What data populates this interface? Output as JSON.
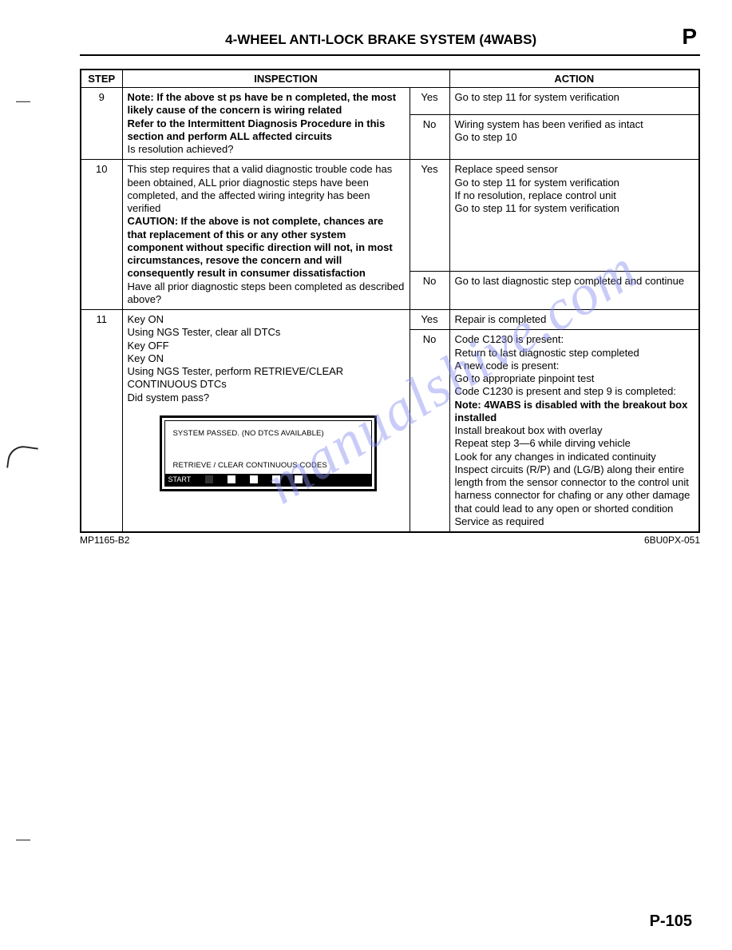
{
  "header": {
    "title": "4-WHEEL ANTI-LOCK BRAKE SYSTEM (4WABS)",
    "letter": "P"
  },
  "columns": {
    "step": "STEP",
    "inspection": "INSPECTION",
    "action": "ACTION"
  },
  "rows": [
    {
      "step": "9",
      "inspection_html": "<span class='b'>Note: If the above st ps have be n completed, the most likely cause of the concern is wiring related<br>Refer to the Intermittent Diagnosis Procedure in this section and perform ALL affected circuits</span><br>Is resolution achieved?",
      "branches": [
        {
          "yn": "Yes",
          "action_html": "Go to step 11 for system verification"
        },
        {
          "yn": "No",
          "action_html": "Wiring system has been verified as intact<br>Go to step 10"
        }
      ]
    },
    {
      "step": "10",
      "inspection_html": "This step requires that a valid diagnostic trouble code has been obtained, ALL prior diagnostic steps have been completed, and the affected wiring integrity has been verified<br><span class='b'>CAUTION: If the above is not complete, chances are that replacement of this or any other system component without specific direction will not, in most circumstances, resove the concern and will consequently result in consumer dissatisfaction</span><br>Have all prior diagnostic steps been completed as described above?",
      "branches": [
        {
          "yn": "Yes",
          "action_html": "Replace speed sensor<br>Go to step 11 for system verification<br>If no resolution, replace control unit<br>Go to step 11 for system verification"
        },
        {
          "yn": "No",
          "action_html": "Go to last diagnostic step completed and continue"
        }
      ]
    },
    {
      "step": "11",
      "inspection_html": "Key ON<br>Using NGS Tester, clear all DTCs<br>Key OFF<br>Key ON<br>Using NGS Tester, perform RETRIEVE/CLEAR CONTINUOUS DTCs<br>Did system pass?",
      "ngs": {
        "line1": "SYSTEM PASSED. (NO DTCS AVAILABLE)",
        "line2": "RETRIEVE / CLEAR CONTINUOUS CODES",
        "start": "START"
      },
      "branches": [
        {
          "yn": "Yes",
          "action_html": "Repair is completed"
        },
        {
          "yn": "No",
          "action_html": "Code C1230 is present:<br>Return to last diagnostic step completed<br>A new code is present:<br>Go to appropriate pinpoint test<br>Code C1230 is present and step 9 is completed:<br><span class='b'>Note: 4WABS is disabled with the breakout box installed</span><br>Install breakout box with overlay<br>Repeat step 3—6 while dirving vehicle<br>Look for any changes in indicated continuity<br>Inspect circuits (R/P) and (LG/B) along their entire length from the sensor connector to the control unit harness connector for chafing or any other damage that could lead to any open or shorted condition<br>Service as required"
        }
      ]
    }
  ],
  "footer": {
    "left": "MP1165-B2",
    "right": "6BU0PX-051"
  },
  "page_number": "P-105",
  "watermark": "manualshive.com"
}
